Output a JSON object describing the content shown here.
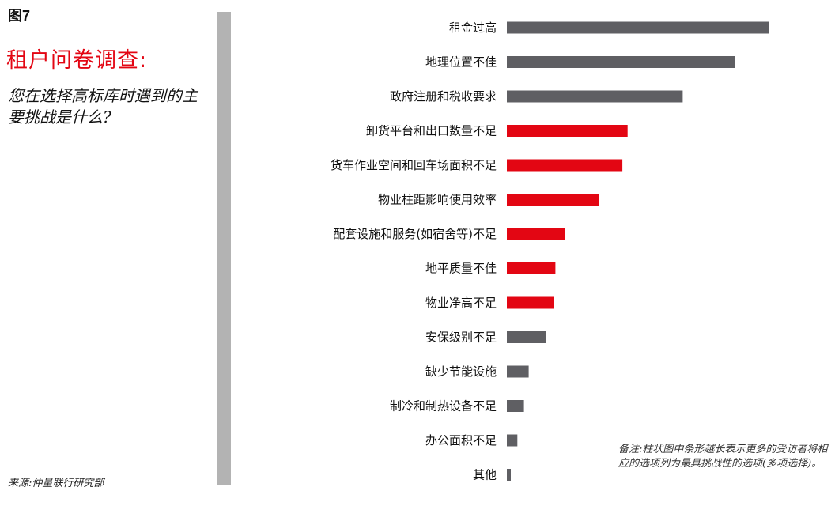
{
  "figure": {
    "label": "图7",
    "title": "租户问卷调查:",
    "subtitle": "您在选择高标库时遇到的主要挑战是什么?",
    "source": "来源:仲量联行研究部",
    "note": "备注:柱状图中条形越长表示更多的受访者将相应的选项列为最具挑战性的选项(多项选择)。"
  },
  "colors": {
    "gray_bar": "#5f5f63",
    "red_bar": "#e30613",
    "title_red": "#e30613",
    "divider": "#b3b3b3"
  },
  "chart_data": {
    "type": "bar",
    "orientation": "horizontal",
    "title": "",
    "xlabel": "",
    "ylabel": "",
    "axis_shown": false,
    "grid": false,
    "xlim": [
      0,
      100
    ],
    "categories": [
      "租金过高",
      "地理位置不佳",
      "政府注册和税收要求",
      "卸货平台和出口数量不足",
      "货车作业空间和回车场面积不足",
      "物业柱距影响使用效率",
      "配套设施和服务(如宿舍等)不足",
      "地平质量不佳",
      "物业净高不足",
      "安保级别不足",
      "缺少节能设施",
      "制冷和制热设备不足",
      "办公面积不足",
      "其他"
    ],
    "values": [
      100,
      87,
      67,
      46,
      44,
      35,
      22,
      18.5,
      18,
      15,
      8.3,
      6.5,
      4,
      1.5
    ],
    "highlight": [
      false,
      false,
      false,
      true,
      true,
      true,
      true,
      true,
      true,
      false,
      false,
      false,
      false,
      false
    ]
  }
}
